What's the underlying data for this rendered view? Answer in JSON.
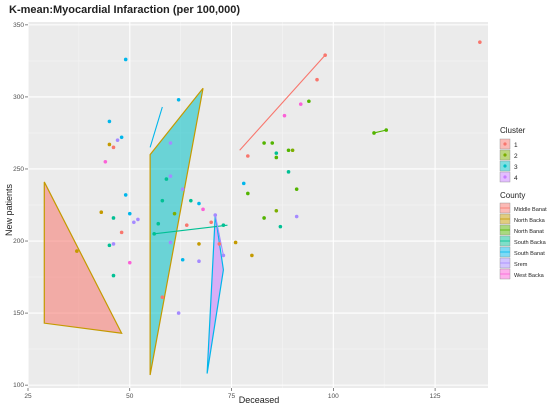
{
  "chart_data": {
    "type": "scatter",
    "title": "K-mean:Myocardial Infaraction (per 100,000)",
    "xlabel": "Deceased",
    "ylabel": "New patients",
    "xlim": [
      25,
      138
    ],
    "ylim": [
      98,
      352
    ],
    "x_ticks": [
      25,
      50,
      75,
      100,
      125
    ],
    "y_ticks": [
      100,
      150,
      200,
      250,
      300,
      350
    ],
    "grid": true,
    "legend_placement": "right",
    "cluster_legend": {
      "title": "Cluster",
      "items": [
        {
          "label": "1",
          "color": "#F8766D"
        },
        {
          "label": "2",
          "color": "#7CAE00"
        },
        {
          "label": "3",
          "color": "#00BFC4"
        },
        {
          "label": "4",
          "color": "#C77CFF"
        }
      ]
    },
    "county_legend": {
      "title": "County",
      "items": [
        {
          "label": "Middle Banat",
          "color": "#F8766D"
        },
        {
          "label": "North Backa",
          "color": "#C49A00"
        },
        {
          "label": "North Banat",
          "color": "#53B400"
        },
        {
          "label": "South Backa",
          "color": "#00C094"
        },
        {
          "label": "South Banat",
          "color": "#00B6EB"
        },
        {
          "label": "Srem",
          "color": "#A58AFF"
        },
        {
          "label": "West Backa",
          "color": "#FB61D7"
        }
      ]
    },
    "hulls": [
      {
        "cluster": "1",
        "fill": "#F8766D",
        "stroke": "#C49A00",
        "points": [
          [
            29,
            241
          ],
          [
            29,
            143
          ],
          [
            48,
            136
          ]
        ]
      },
      {
        "cluster": "3",
        "fill": "#00BFC4",
        "stroke": "#C49A00",
        "points": [
          [
            55,
            107
          ],
          [
            55,
            260
          ],
          [
            68,
            306
          ]
        ]
      },
      {
        "cluster": "4",
        "fill": "#C77CFF",
        "stroke": "#00B6EB",
        "points": [
          [
            69,
            108
          ],
          [
            71,
            218
          ],
          [
            73,
            180
          ]
        ]
      }
    ],
    "segments": [
      {
        "color": "#F8766D",
        "points": [
          [
            77,
            263
          ],
          [
            98,
            329
          ]
        ]
      },
      {
        "color": "#53B400",
        "points": [
          [
            110,
            275
          ],
          [
            113,
            277
          ]
        ]
      },
      {
        "color": "#00B6EB",
        "points": [
          [
            55,
            265
          ],
          [
            58,
            293
          ]
        ]
      },
      {
        "color": "#00C094",
        "points": [
          [
            56,
            205
          ],
          [
            74,
            211
          ]
        ]
      },
      {
        "color": "#A58AFF",
        "points": [
          [
            71,
            218
          ],
          [
            73,
            190
          ]
        ]
      }
    ],
    "points": [
      {
        "x": 136,
        "y": 338,
        "color": "#F8766D"
      },
      {
        "x": 98,
        "y": 329,
        "color": "#F8766D"
      },
      {
        "x": 96,
        "y": 312,
        "color": "#F8766D"
      },
      {
        "x": 92,
        "y": 295,
        "color": "#FB61D7"
      },
      {
        "x": 94,
        "y": 297,
        "color": "#53B400"
      },
      {
        "x": 88,
        "y": 287,
        "color": "#FB61D7"
      },
      {
        "x": 83,
        "y": 268,
        "color": "#53B400"
      },
      {
        "x": 85,
        "y": 268,
        "color": "#53B400"
      },
      {
        "x": 89,
        "y": 263,
        "color": "#53B400"
      },
      {
        "x": 90,
        "y": 263,
        "color": "#7CAE00"
      },
      {
        "x": 86,
        "y": 261,
        "color": "#00C094"
      },
      {
        "x": 79,
        "y": 259,
        "color": "#F8766D"
      },
      {
        "x": 86,
        "y": 258,
        "color": "#53B400"
      },
      {
        "x": 89,
        "y": 248,
        "color": "#00C094"
      },
      {
        "x": 78,
        "y": 240,
        "color": "#00B6EB"
      },
      {
        "x": 91,
        "y": 236,
        "color": "#53B400"
      },
      {
        "x": 79,
        "y": 233,
        "color": "#53B400"
      },
      {
        "x": 86,
        "y": 221,
        "color": "#7CAE00"
      },
      {
        "x": 91,
        "y": 217,
        "color": "#A58AFF"
      },
      {
        "x": 83,
        "y": 216,
        "color": "#53B400"
      },
      {
        "x": 87,
        "y": 210,
        "color": "#00C094"
      },
      {
        "x": 80,
        "y": 190,
        "color": "#C49A00"
      },
      {
        "x": 76,
        "y": 199,
        "color": "#C49A00"
      },
      {
        "x": 49,
        "y": 326,
        "color": "#00B6EB"
      },
      {
        "x": 45,
        "y": 283,
        "color": "#00B6EB"
      },
      {
        "x": 47,
        "y": 270,
        "color": "#A58AFF"
      },
      {
        "x": 48,
        "y": 272,
        "color": "#00B6EB"
      },
      {
        "x": 45,
        "y": 267,
        "color": "#C49A00"
      },
      {
        "x": 46,
        "y": 265,
        "color": "#F8766D"
      },
      {
        "x": 44,
        "y": 255,
        "color": "#FB61D7"
      },
      {
        "x": 49,
        "y": 232,
        "color": "#00B6EB"
      },
      {
        "x": 50,
        "y": 219,
        "color": "#00B6EB"
      },
      {
        "x": 43,
        "y": 220,
        "color": "#C49A00"
      },
      {
        "x": 46,
        "y": 216,
        "color": "#00C094"
      },
      {
        "x": 52,
        "y": 215,
        "color": "#A58AFF"
      },
      {
        "x": 48,
        "y": 206,
        "color": "#F8766D"
      },
      {
        "x": 51,
        "y": 213,
        "color": "#A58AFF"
      },
      {
        "x": 45,
        "y": 197,
        "color": "#00C094"
      },
      {
        "x": 46,
        "y": 198,
        "color": "#A58AFF"
      },
      {
        "x": 50,
        "y": 185,
        "color": "#FB61D7"
      },
      {
        "x": 46,
        "y": 176,
        "color": "#00C094"
      },
      {
        "x": 37,
        "y": 193,
        "color": "#C49A00"
      },
      {
        "x": 62,
        "y": 298,
        "color": "#00B6EB"
      },
      {
        "x": 60,
        "y": 268,
        "color": "#A58AFF"
      },
      {
        "x": 58,
        "y": 228,
        "color": "#00C094"
      },
      {
        "x": 59,
        "y": 243,
        "color": "#00C094"
      },
      {
        "x": 60,
        "y": 245,
        "color": "#A58AFF"
      },
      {
        "x": 63,
        "y": 236,
        "color": "#A58AFF"
      },
      {
        "x": 65,
        "y": 228,
        "color": "#00C094"
      },
      {
        "x": 67,
        "y": 226,
        "color": "#00B6EB"
      },
      {
        "x": 61,
        "y": 219,
        "color": "#7CAE00"
      },
      {
        "x": 64,
        "y": 211,
        "color": "#F8766D"
      },
      {
        "x": 68,
        "y": 222,
        "color": "#FB61D7"
      },
      {
        "x": 60,
        "y": 199,
        "color": "#A58AFF"
      },
      {
        "x": 67,
        "y": 198,
        "color": "#C49A00"
      },
      {
        "x": 63,
        "y": 187,
        "color": "#00B6EB"
      },
      {
        "x": 67,
        "y": 186,
        "color": "#A58AFF"
      },
      {
        "x": 58,
        "y": 161,
        "color": "#F8766D"
      },
      {
        "x": 62,
        "y": 150,
        "color": "#A58AFF"
      },
      {
        "x": 70,
        "y": 213,
        "color": "#F8766D"
      },
      {
        "x": 71,
        "y": 218,
        "color": "#A58AFF"
      },
      {
        "x": 73,
        "y": 211,
        "color": "#00C094"
      },
      {
        "x": 72,
        "y": 198,
        "color": "#F8766D"
      },
      {
        "x": 73,
        "y": 190,
        "color": "#A58AFF"
      },
      {
        "x": 56,
        "y": 205,
        "color": "#00C094"
      },
      {
        "x": 57,
        "y": 212,
        "color": "#00C094"
      },
      {
        "x": 113,
        "y": 277,
        "color": "#53B400"
      },
      {
        "x": 110,
        "y": 275,
        "color": "#53B400"
      }
    ]
  }
}
